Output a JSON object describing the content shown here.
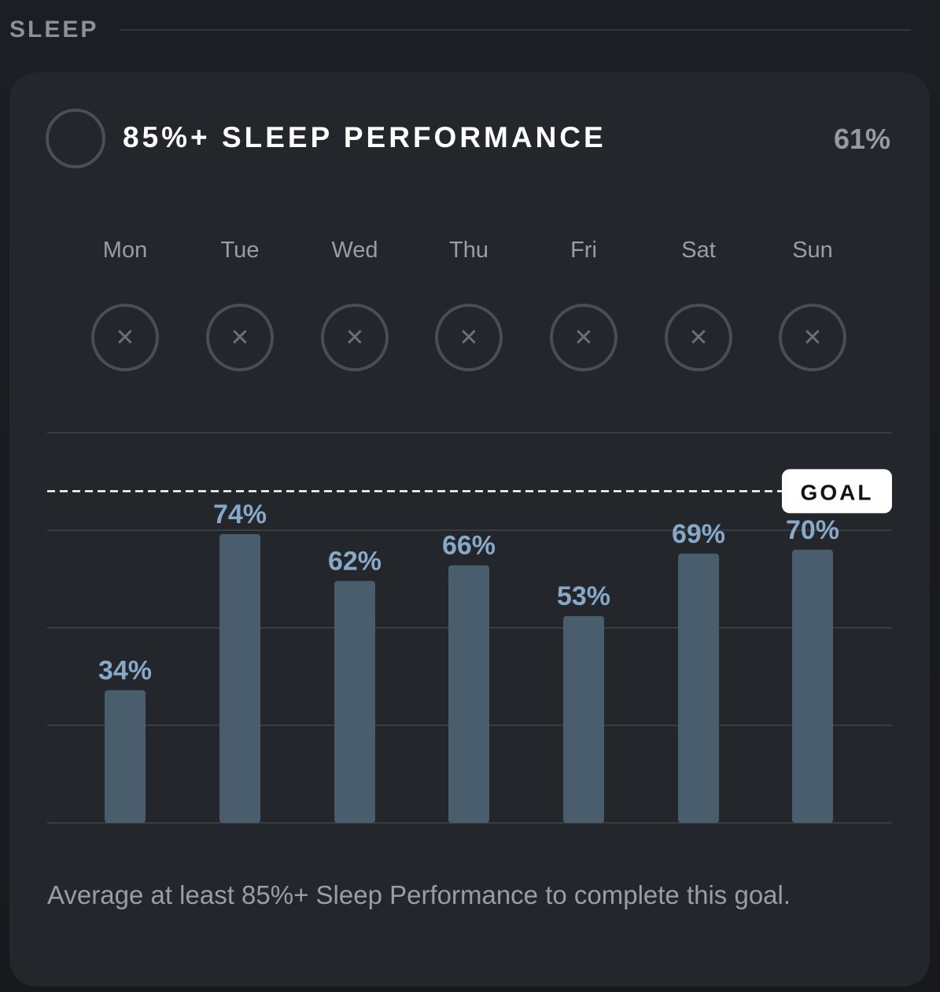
{
  "section": {
    "title": "SLEEP"
  },
  "card": {
    "title": "85%+ SLEEP PERFORMANCE",
    "value": "61%",
    "goal_label": "GOAL",
    "footer": "Average at least 85%+ Sleep Performance to complete this goal."
  },
  "days": [
    {
      "label": "Mon",
      "status_icon": "x-icon",
      "status_glyph": "✕"
    },
    {
      "label": "Tue",
      "status_icon": "x-icon",
      "status_glyph": "✕"
    },
    {
      "label": "Wed",
      "status_icon": "x-icon",
      "status_glyph": "✕"
    },
    {
      "label": "Thu",
      "status_icon": "x-icon",
      "status_glyph": "✕"
    },
    {
      "label": "Fri",
      "status_icon": "x-icon",
      "status_glyph": "✕"
    },
    {
      "label": "Sat",
      "status_icon": "x-icon",
      "status_glyph": "✕"
    },
    {
      "label": "Sun",
      "status_icon": "x-icon",
      "status_glyph": "✕"
    }
  ],
  "colors": {
    "bar": "#4a5d6c",
    "bar_label": "#86a9c8",
    "gridline": "#3a3e43",
    "goal_line": "#ffffff"
  },
  "chart_data": {
    "type": "bar",
    "categories": [
      "Mon",
      "Tue",
      "Wed",
      "Thu",
      "Fri",
      "Sat",
      "Sun"
    ],
    "values": [
      34,
      74,
      62,
      66,
      53,
      69,
      70
    ],
    "data_labels": [
      "34%",
      "74%",
      "62%",
      "66%",
      "53%",
      "69%",
      "70%"
    ],
    "goal": 85,
    "ylim": [
      0,
      100
    ],
    "grid": true,
    "legend": "none"
  }
}
